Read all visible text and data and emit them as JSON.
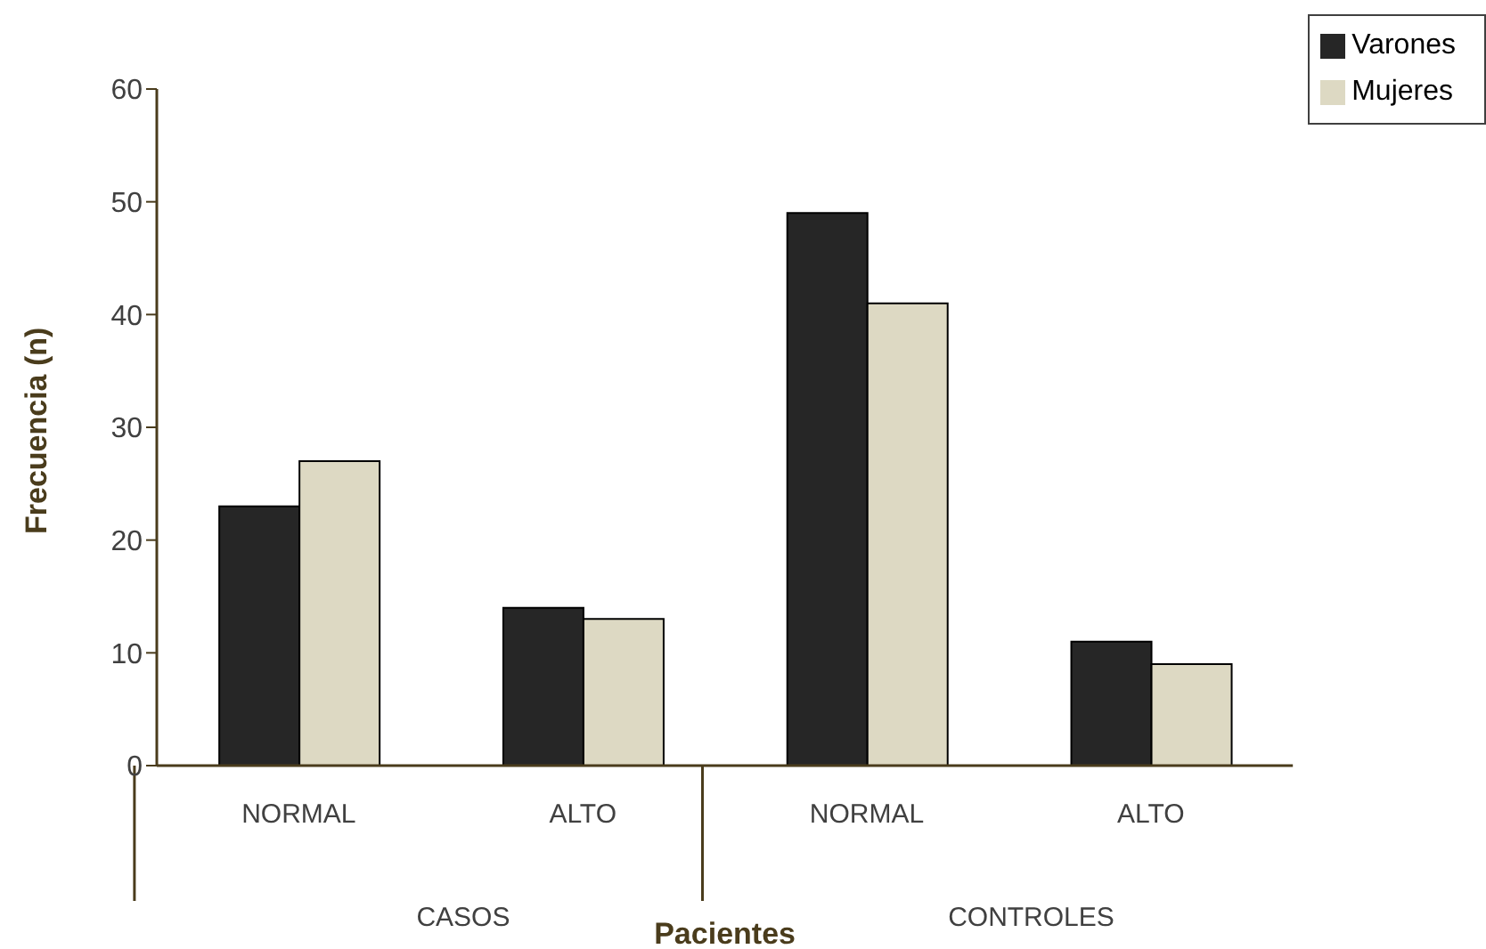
{
  "chart_data": {
    "type": "bar",
    "xlabel": "Pacientes",
    "ylabel": "Frecuencia (n)",
    "categories": [
      "NORMAL",
      "ALTO",
      "NORMAL",
      "ALTO"
    ],
    "series": [
      {
        "name": "Varones",
        "color": "#262626",
        "values": [
          23,
          14,
          49,
          11
        ]
      },
      {
        "name": "Mujeres",
        "color": "#ddd9c3",
        "values": [
          27,
          13,
          41,
          9
        ]
      }
    ],
    "annotations": [
      "CASOS",
      "CONTROLES"
    ],
    "ylim": [
      0,
      60
    ],
    "yticks": [
      0,
      10,
      20,
      30,
      40,
      50,
      60
    ],
    "grid": false,
    "legend": "top right"
  }
}
